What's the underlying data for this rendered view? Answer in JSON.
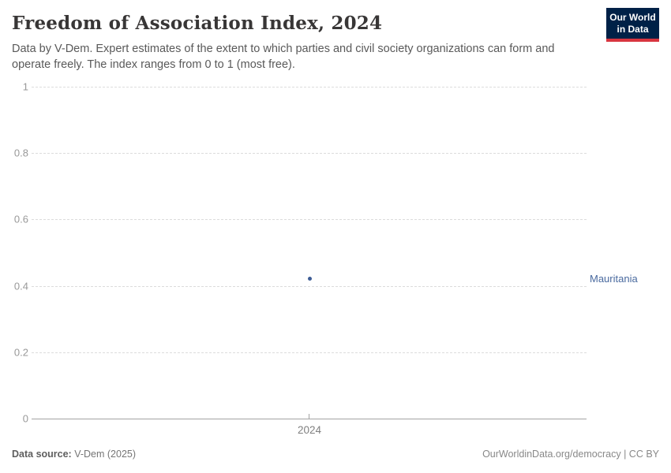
{
  "header": {
    "title": "Freedom of Association Index, 2024",
    "subtitle": "Data by V-Dem. Expert estimates of the extent to which parties and civil society organizations can form and operate freely. The index ranges from 0 to 1 (most free).",
    "logo": {
      "line1": "Our World",
      "line2": "in Data"
    }
  },
  "chart_data": {
    "type": "scatter",
    "title": "Freedom of Association Index, 2024",
    "series": [
      {
        "name": "Mauritania",
        "points": [
          {
            "x": 2024,
            "y": 0.42
          }
        ],
        "color": "#3d5c95"
      }
    ],
    "xlabel": "",
    "ylabel": "",
    "xlim": [
      2024,
      2024
    ],
    "ylim": [
      0,
      1
    ],
    "grid": "horizontal-dashed",
    "legend_position": "right-entity-label"
  },
  "axes": {
    "y_tick_labels": [
      "1",
      "0.8",
      "0.6",
      "0.4",
      "0.2",
      "0"
    ],
    "x_tick_label": "2024"
  },
  "entity_label": "Mauritania",
  "footer": {
    "source_label": "Data source:",
    "source_value": " V-Dem (2025)",
    "credit": "OurWorldinData.org/democracy | CC BY"
  },
  "colors": {
    "series_blue": "#3d5c95",
    "entity_label_blue": "#4a6a9f",
    "logo_navy": "#002147",
    "logo_red": "#d8353f",
    "gridline": "#dcdcdc",
    "axis": "#a3a3a3"
  }
}
